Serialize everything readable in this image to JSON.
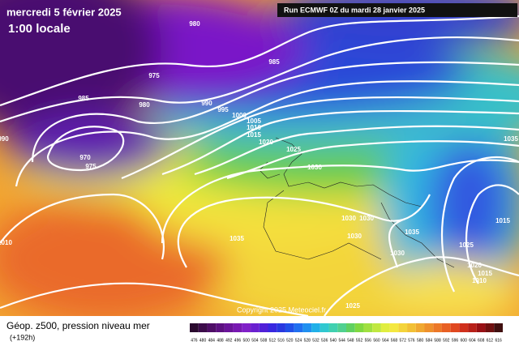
{
  "header": {
    "date": "mercredi 5 février 2025",
    "time": "1:00 locale",
    "run": "Run ECMWF 0Z du mardi 28 janvier 2025"
  },
  "isobar_labels": [
    980,
    985,
    975,
    985,
    980,
    990,
    995,
    1000,
    1005,
    1010,
    1015,
    1020,
    1025,
    1030,
    970,
    975,
    990,
    1010,
    1035,
    1030,
    1030,
    1030,
    1035,
    1030,
    1025,
    1035,
    1015,
    1025,
    1020,
    1015,
    1010
  ],
  "copyright": "Copyright 2025 Meteociel.fr",
  "legend": {
    "title": "Géop. z500, pression niveau mer",
    "lead": "(+192h)",
    "scale": [
      476,
      480,
      484,
      488,
      492,
      496,
      500,
      504,
      508,
      512,
      516,
      520,
      524,
      528,
      532,
      536,
      540,
      544,
      548,
      552,
      556,
      560,
      564,
      568,
      572,
      576,
      580,
      584,
      588,
      592,
      596,
      600,
      604,
      608,
      612,
      616
    ]
  }
}
